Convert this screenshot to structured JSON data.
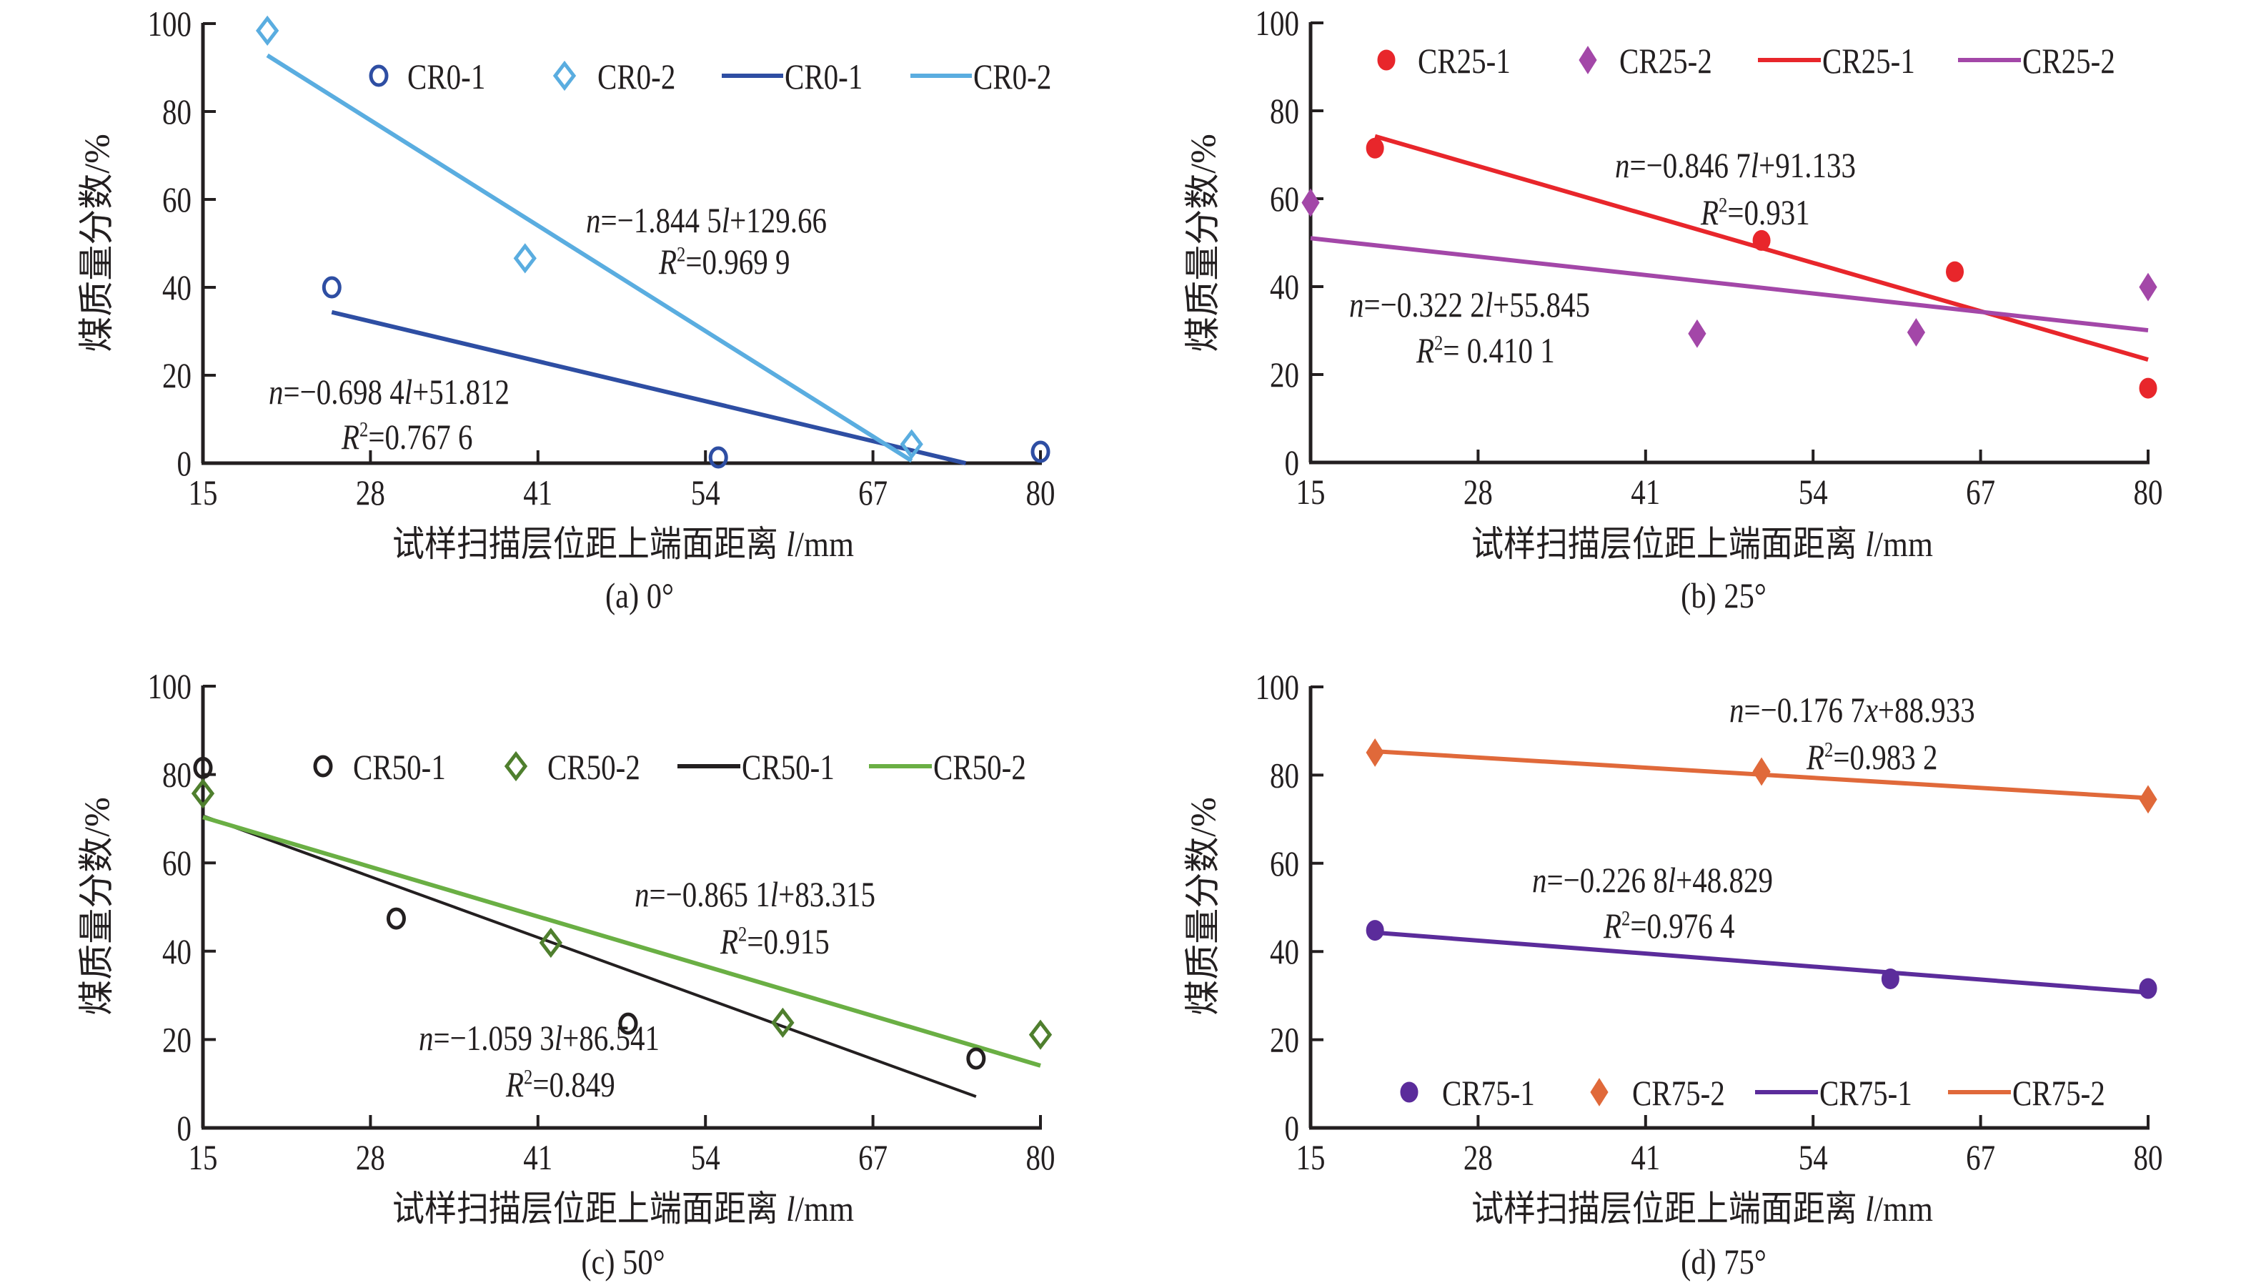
{
  "figure": {
    "y_axis_label": "煤质量分数/%",
    "x_axis_label_cn": "试样扫描层位距上端面距离 ",
    "x_axis_label_var": "l",
    "x_axis_label_unit": "/mm"
  },
  "chart_data": [
    {
      "type": "scatter",
      "id": "a",
      "caption": "(a) 0°",
      "title": "",
      "xlabel": "试样扫描层位距上端面距离 l/mm",
      "ylabel": "煤质量分数/%",
      "xlim": [
        15,
        80
      ],
      "ylim": [
        0,
        100
      ],
      "xticks": [
        15,
        28,
        41,
        54,
        67,
        80
      ],
      "yticks": [
        0,
        20,
        40,
        60,
        80,
        100
      ],
      "grid": false,
      "legend_position": "top-right",
      "legend": [
        {
          "label": "CR0-1",
          "kind": "marker",
          "series": 0
        },
        {
          "label": "CR0-2",
          "kind": "marker",
          "series": 1
        },
        {
          "label": "CR0-1",
          "kind": "line",
          "series": 0
        },
        {
          "label": "CR0-2",
          "kind": "line",
          "series": 1
        }
      ],
      "series": [
        {
          "name": "CR0-1",
          "color": "#2e4ea3",
          "marker": "circle-open",
          "points": [
            [
              25,
              40.0
            ],
            [
              55,
              1.3
            ],
            [
              80,
              2.6
            ]
          ],
          "trendline": {
            "slope": -0.6984,
            "intercept": 51.812,
            "x_range": [
              25,
              74.2
            ],
            "equation": "n=−0.698 4l+51.812",
            "r2": "R²=0.767 6"
          }
        },
        {
          "name": "CR0-2",
          "color": "#5aade0",
          "marker": "diamond-open",
          "points": [
            [
              20,
              98.4
            ],
            [
              40,
              46.6
            ],
            [
              70,
              4.3
            ]
          ],
          "trendline": {
            "slope": -1.8445,
            "intercept": 129.66,
            "x_range": [
              20,
              70
            ],
            "equation": "n=−1.844 5l+129.66",
            "r2": "R²=0.969 9"
          }
        }
      ]
    },
    {
      "type": "scatter",
      "id": "b",
      "caption": "(b) 25°",
      "title": "",
      "xlabel": "试样扫描层位距上端面距离 l/mm",
      "ylabel": "煤质量分数/%",
      "xlim": [
        15,
        80
      ],
      "ylim": [
        0,
        100
      ],
      "xticks": [
        15,
        28,
        41,
        54,
        67,
        80
      ],
      "yticks": [
        0,
        20,
        40,
        60,
        80,
        100
      ],
      "grid": false,
      "legend_position": "top",
      "legend": [
        {
          "label": "CR25-1",
          "kind": "marker",
          "series": 0
        },
        {
          "label": "CR25-2",
          "kind": "marker",
          "series": 1
        },
        {
          "label": "CR25-1",
          "kind": "line",
          "series": 0
        },
        {
          "label": "CR25-2",
          "kind": "line",
          "series": 1
        }
      ],
      "series": [
        {
          "name": "CR25-1",
          "color": "#e8262b",
          "marker": "circle-filled",
          "points": [
            [
              20,
              71.5
            ],
            [
              50,
              50.5
            ],
            [
              65,
              43.4
            ],
            [
              80,
              16.9
            ]
          ],
          "trendline": {
            "slope": -0.8467,
            "intercept": 91.133,
            "x_range": [
              20,
              80
            ],
            "equation": "n=−0.846 7l+91.133",
            "r2": "R²=0.931"
          }
        },
        {
          "name": "CR25-2",
          "color": "#a347a8",
          "marker": "diamond-filled",
          "points": [
            [
              15,
              59.1
            ],
            [
              45,
              29.3
            ],
            [
              62,
              29.6
            ],
            [
              80,
              39.9
            ]
          ],
          "trendline": {
            "slope": -0.3222,
            "intercept": 55.845,
            "x_range": [
              15,
              80
            ],
            "equation": "n=−0.322 2l+55.845",
            "r2": "R²= 0.410 1"
          }
        }
      ]
    },
    {
      "type": "scatter",
      "id": "c",
      "caption": "(c) 50°",
      "title": "",
      "xlabel": "试样扫描层位距上端面距离 l/mm",
      "ylabel": "煤质量分数/%",
      "xlim": [
        15,
        80
      ],
      "ylim": [
        0,
        100
      ],
      "xticks": [
        15,
        28,
        41,
        54,
        67,
        80
      ],
      "yticks": [
        0,
        20,
        40,
        60,
        80,
        100
      ],
      "grid": false,
      "legend_position": "top-right",
      "legend": [
        {
          "label": "CR50-1",
          "kind": "marker",
          "series": 0
        },
        {
          "label": "CR50-2",
          "kind": "marker",
          "series": 1
        },
        {
          "label": "CR50-1",
          "kind": "line",
          "series": 0
        },
        {
          "label": "CR50-2",
          "kind": "line",
          "series": 1
        }
      ],
      "series": [
        {
          "name": "CR50-1",
          "color": "#231f20",
          "marker": "circle-open",
          "points": [
            [
              15,
              81.5
            ],
            [
              30,
              47.4
            ],
            [
              48,
              23.6
            ],
            [
              75,
              15.7
            ]
          ],
          "trendline": {
            "slope": -1.0593,
            "intercept": 86.541,
            "x_range": [
              15,
              75
            ],
            "equation": "n=−1.059 3l+86.541",
            "r2": "R²=0.849",
            "line_color": "#231f20"
          }
        },
        {
          "name": "CR50-2",
          "color": "#4f7f2e",
          "marker": "diamond-open",
          "points": [
            [
              15,
              75.7
            ],
            [
              42,
              41.9
            ],
            [
              60,
              23.8
            ],
            [
              80,
              21.1
            ]
          ],
          "trendline": {
            "slope": -0.8651,
            "intercept": 83.315,
            "x_range": [
              15,
              80
            ],
            "equation": "n=−0.865 1l+83.315",
            "r2": "R²=0.915",
            "line_color": "#6aaf44"
          }
        }
      ]
    },
    {
      "type": "scatter",
      "id": "d",
      "caption": "(d) 75°",
      "title": "",
      "xlabel": "试样扫描层位距上端面距离 l/mm",
      "ylabel": "煤质量分数/%",
      "xlim": [
        15,
        80
      ],
      "ylim": [
        0,
        100
      ],
      "xticks": [
        15,
        28,
        41,
        54,
        67,
        80
      ],
      "yticks": [
        0,
        20,
        40,
        60,
        80,
        100
      ],
      "grid": false,
      "legend_position": "bottom-right",
      "legend": [
        {
          "label": "CR75-1",
          "kind": "marker",
          "series": 0
        },
        {
          "label": "CR75-2",
          "kind": "marker",
          "series": 1
        },
        {
          "label": "CR75-1",
          "kind": "line",
          "series": 0
        },
        {
          "label": "CR75-2",
          "kind": "line",
          "series": 1
        }
      ],
      "series": [
        {
          "name": "CR75-1",
          "color": "#5b2c9b",
          "marker": "circle-filled",
          "points": [
            [
              20,
              44.8
            ],
            [
              60,
              33.8
            ],
            [
              80,
              31.6
            ]
          ],
          "trendline": {
            "slope": -0.2268,
            "intercept": 48.829,
            "x_range": [
              20,
              80
            ],
            "equation": "n=−0.226 8l+48.829",
            "r2": "R²=0.976 4"
          }
        },
        {
          "name": "CR75-2",
          "color": "#e0693a",
          "marker": "diamond-filled",
          "points": [
            [
              20,
              85.1
            ],
            [
              50,
              80.8
            ],
            [
              80,
              74.5
            ]
          ],
          "trendline": {
            "slope": -0.1767,
            "intercept": 88.933,
            "x_range": [
              20,
              80
            ],
            "equation": "n=−0.176 7x+88.933",
            "r2": "R²=0.983 2"
          }
        }
      ]
    }
  ]
}
